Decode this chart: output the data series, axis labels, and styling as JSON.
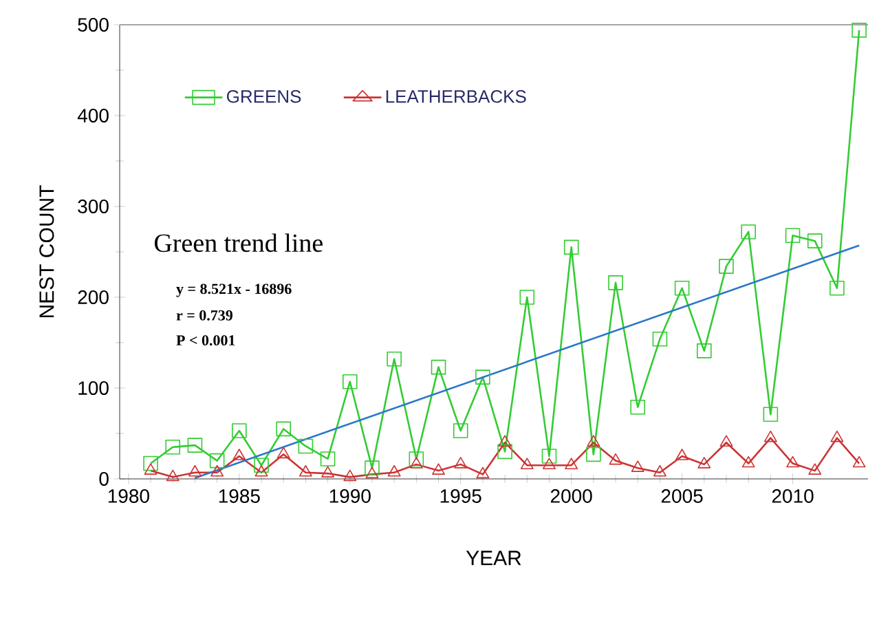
{
  "chart_data": {
    "type": "line",
    "xlabel": "YEAR",
    "ylabel": "NEST COUNT",
    "x": [
      1981,
      1982,
      1983,
      1984,
      1985,
      1986,
      1987,
      1988,
      1989,
      1990,
      1991,
      1992,
      1993,
      1994,
      1995,
      1996,
      1997,
      1998,
      1999,
      2000,
      2001,
      2002,
      2003,
      2004,
      2005,
      2006,
      2007,
      2008,
      2009,
      2010,
      2011,
      2012,
      2013
    ],
    "series": [
      {
        "name": "GREENS",
        "color": "#33cc33",
        "marker": "square",
        "values": [
          17,
          35,
          37,
          20,
          53,
          15,
          55,
          36,
          22,
          107,
          12,
          132,
          22,
          123,
          53,
          112,
          30,
          200,
          25,
          255,
          27,
          216,
          79,
          154,
          210,
          141,
          234,
          272,
          71,
          268,
          262,
          210,
          494
        ]
      },
      {
        "name": "LEATHERBACKS",
        "color": "#cc3333",
        "marker": "triangle",
        "values": [
          9,
          2,
          7,
          7,
          25,
          7,
          27,
          7,
          6,
          2,
          5,
          7,
          16,
          9,
          16,
          5,
          40,
          15,
          15,
          15,
          40,
          20,
          12,
          7,
          25,
          16,
          40,
          17,
          45,
          17,
          9,
          45,
          17
        ]
      },
      {
        "type": "line",
        "color": "#2a78c8",
        "marker": "none",
        "x": [
          1983,
          2013
        ],
        "values": [
          1,
          257
        ]
      }
    ],
    "xlim": [
      1979.6,
      2013.4
    ],
    "ylim": [
      0,
      500
    ],
    "xticks": [
      1980,
      1985,
      1990,
      1995,
      2000,
      2005,
      2010
    ],
    "yticks": [
      0,
      100,
      200,
      300,
      400,
      500
    ],
    "legend": "top",
    "annotations": [
      "Green trend line",
      "y = 8.521x - 16896",
      "r = 0.739",
      "P < 0.001"
    ]
  }
}
